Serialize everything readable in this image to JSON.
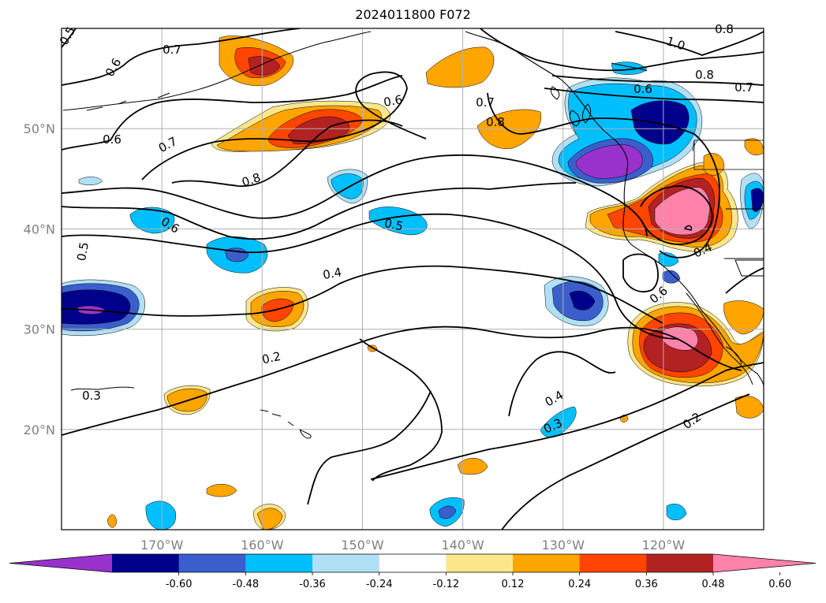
{
  "title": "2024011800 F072",
  "map": {
    "lon_range": [
      -180,
      -110
    ],
    "lat_range": [
      10,
      60
    ],
    "lon_ticks": [
      {
        "value": -170,
        "label": "170°W"
      },
      {
        "value": -160,
        "label": "160°W"
      },
      {
        "value": -150,
        "label": "150°W"
      },
      {
        "value": -140,
        "label": "140°W"
      },
      {
        "value": -130,
        "label": "130°W"
      },
      {
        "value": -120,
        "label": "120°W"
      }
    ],
    "lat_ticks": [
      {
        "value": 50,
        "label": "50°N"
      },
      {
        "value": 40,
        "label": "40°N"
      },
      {
        "value": 30,
        "label": "30°N"
      },
      {
        "value": 20,
        "label": "20°N"
      }
    ],
    "gridlines": true
  },
  "contour_labels": [
    "0.5",
    "0.6",
    "0.7",
    "0.6",
    "0.7",
    "0.8",
    "1.0",
    "0.8",
    "0.8",
    "0.6",
    "0.7",
    "0.6",
    "0.7",
    "0.8",
    "0.6",
    "0.5",
    "0.5",
    "0.4",
    "0.4",
    "0.6",
    "0.2",
    "0.3",
    "0.4",
    "0.3",
    "0.2"
  ],
  "colorbar": {
    "extend": "both",
    "levels": [
      "-0.60",
      "-0.48",
      "-0.36",
      "-0.24",
      "-0.12",
      "0.12",
      "0.24",
      "0.36",
      "0.48",
      "0.60"
    ],
    "colors": [
      "#9932cc",
      "#00008b",
      "#3a5fcd",
      "#00bfff",
      "#b0e0f6",
      "#ffffff",
      "#fde68a",
      "#ffa500",
      "#ff4500",
      "#b22222",
      "#ff82ab"
    ]
  }
}
